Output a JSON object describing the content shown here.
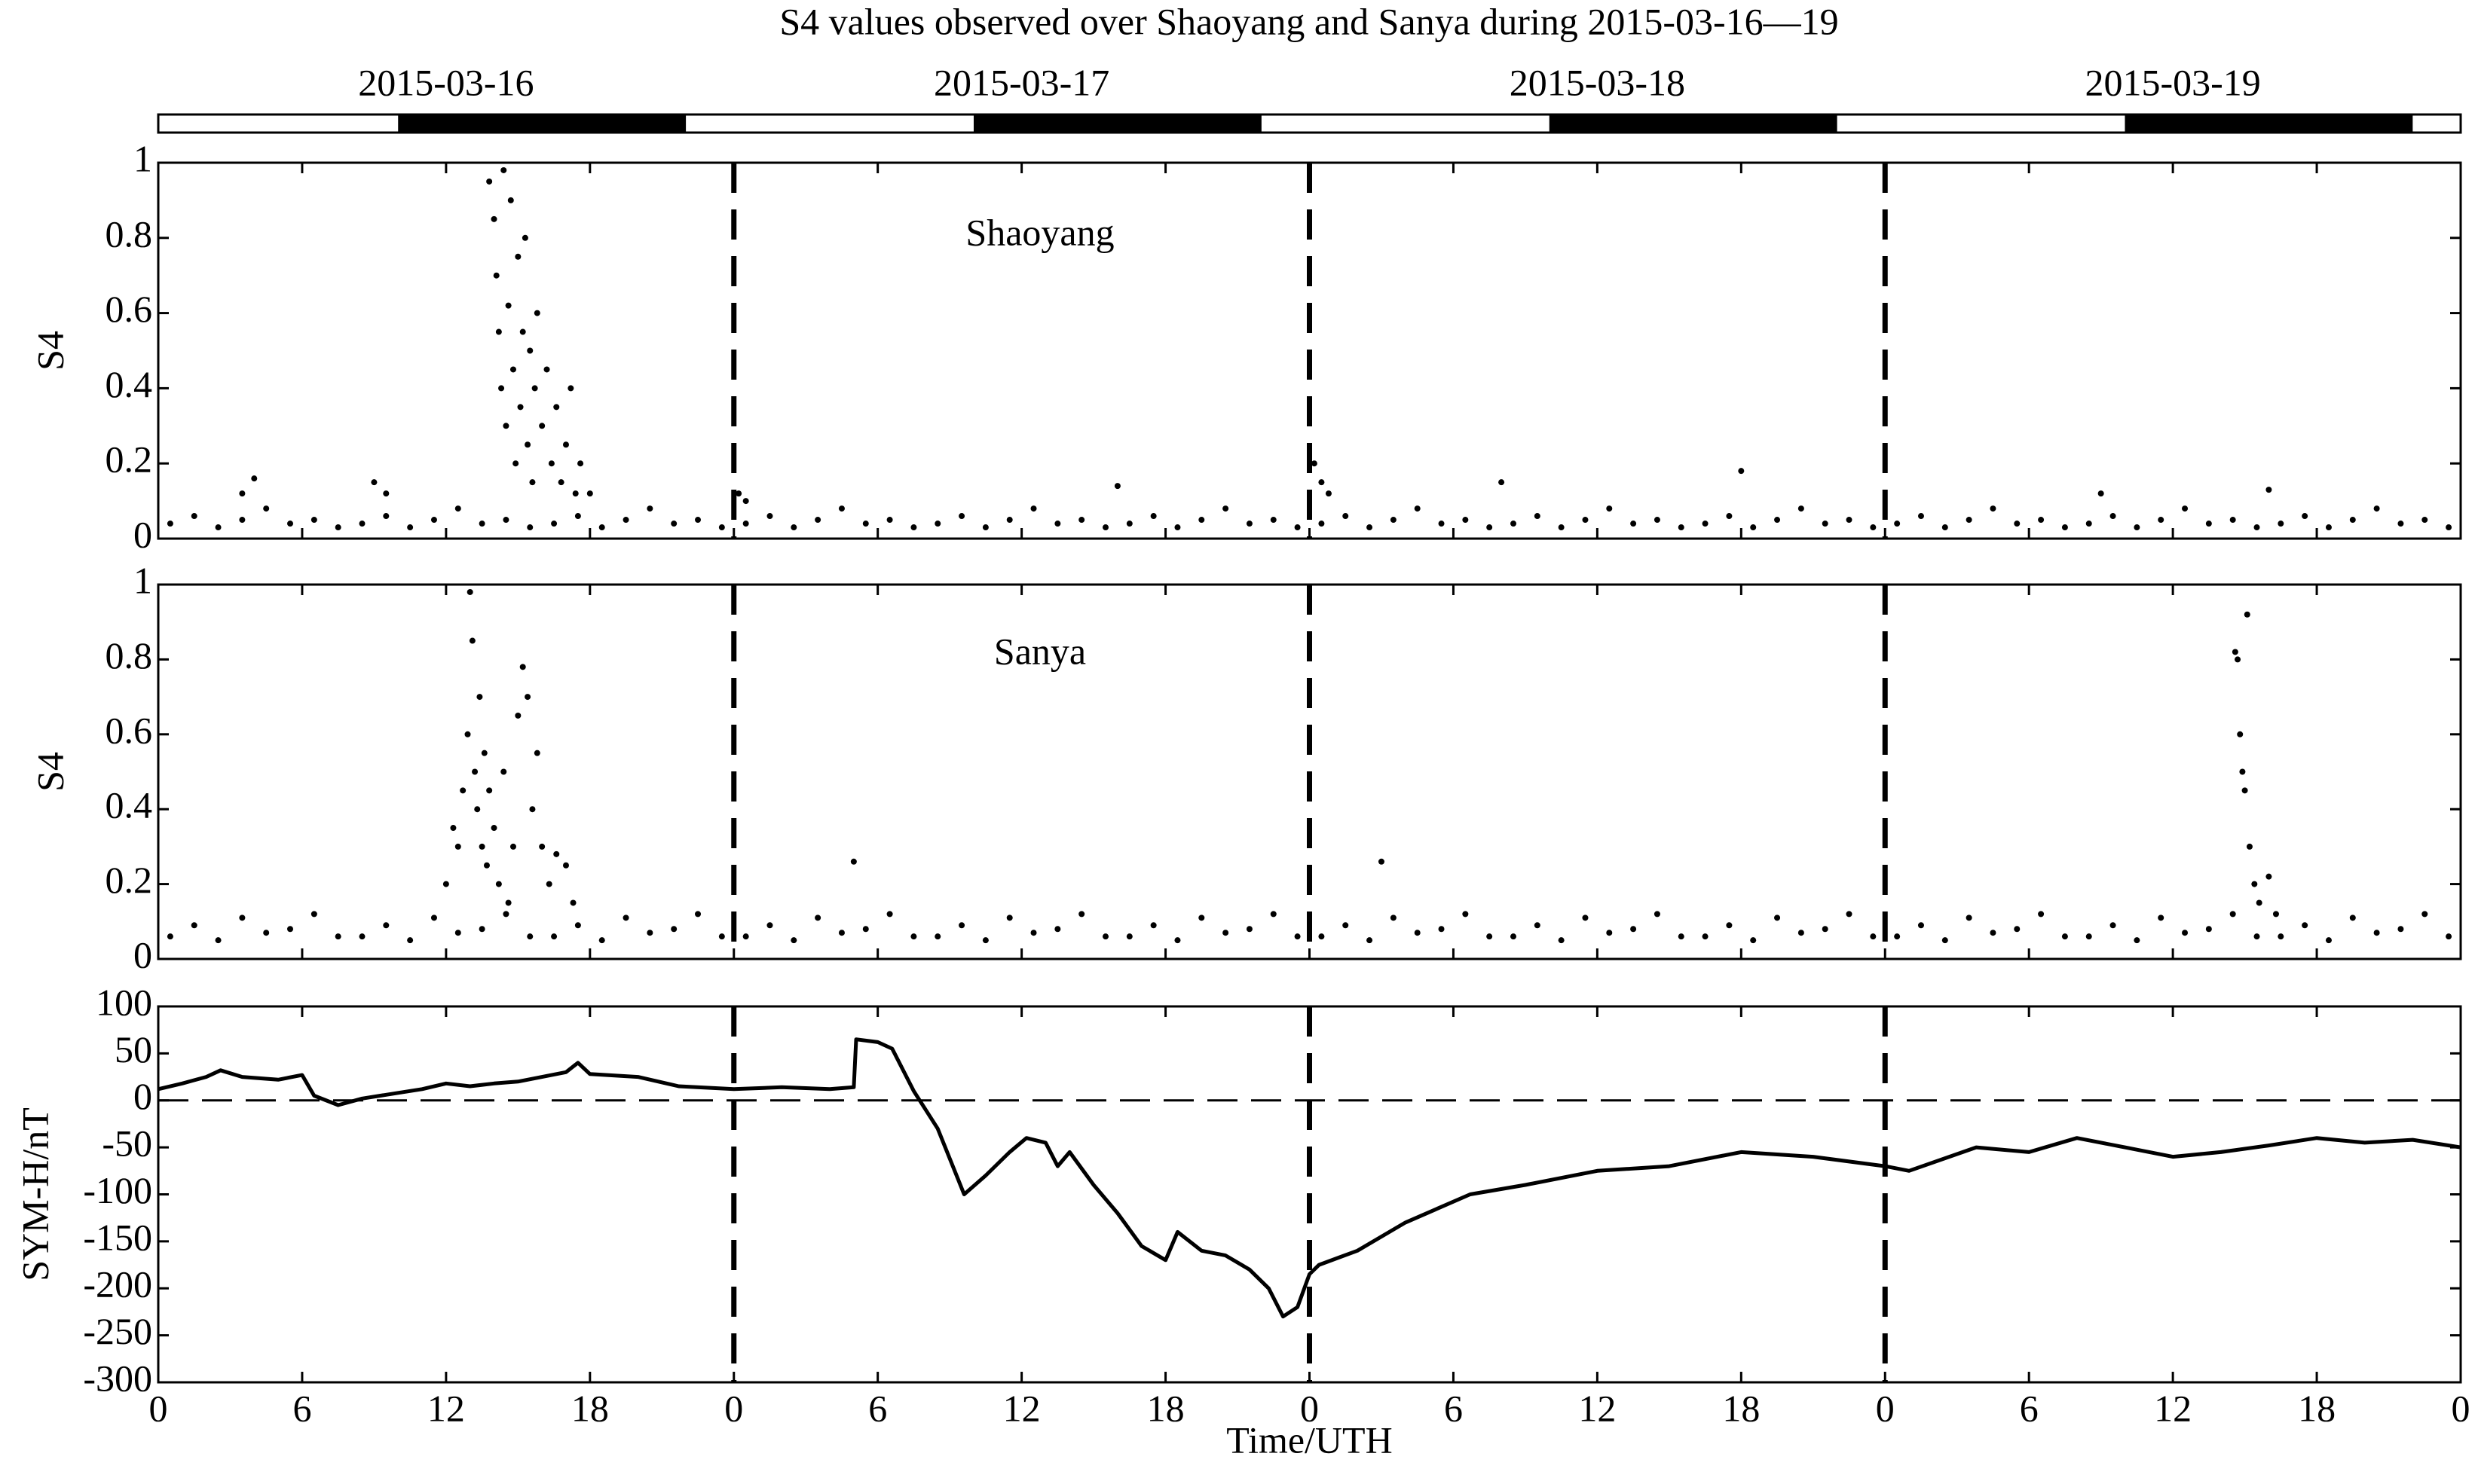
{
  "title": "S4 values observed over Shaoyang and Sanya during 2015-03-16—19",
  "dates": [
    "2015-03-16",
    "2015-03-17",
    "2015-03-18",
    "2015-03-19"
  ],
  "night": [
    [
      10,
      22
    ],
    [
      34,
      46
    ],
    [
      58,
      70
    ],
    [
      82,
      94
    ]
  ],
  "day_boundaries": [
    24,
    48,
    72
  ],
  "chart_data": [
    {
      "type": "scatter",
      "label": "Shaoyang",
      "ylabel": "S4",
      "color": "#000000",
      "xlim": [
        0,
        96
      ],
      "ylim": [
        0,
        1
      ],
      "yticks": [
        0,
        0.2,
        0.4,
        0.6,
        0.8,
        1
      ],
      "x": [
        0.5,
        1.5,
        2.5,
        3.5,
        4.5,
        5.5,
        6.5,
        7.5,
        8.5,
        9.5,
        10.5,
        11.5,
        12.5,
        13.5,
        14.5,
        15.5,
        16.5,
        17.5,
        18.5,
        19.5,
        20.5,
        21.5,
        22.5,
        23.5,
        24.5,
        25.5,
        26.5,
        27.5,
        28.5,
        29.5,
        30.5,
        31.5,
        32.5,
        33.5,
        34.5,
        35.5,
        36.5,
        37.5,
        38.5,
        39.5,
        40.5,
        41.5,
        42.5,
        43.5,
        44.5,
        45.5,
        46.5,
        47.5,
        48.5,
        49.5,
        50.5,
        51.5,
        52.5,
        53.5,
        54.5,
        55.5,
        56.5,
        57.5,
        58.5,
        59.5,
        60.5,
        61.5,
        62.5,
        63.5,
        64.5,
        65.5,
        66.5,
        67.5,
        68.5,
        69.5,
        70.5,
        71.5,
        72.5,
        73.5,
        74.5,
        75.5,
        76.5,
        77.5,
        78.5,
        79.5,
        80.5,
        81.5,
        82.5,
        83.5,
        84.5,
        85.5,
        86.5,
        87.5,
        88.5,
        89.5,
        90.5,
        91.5,
        92.5,
        93.5,
        94.5,
        95.5,
        3.5,
        4,
        9,
        9.5,
        13.8,
        14,
        14.1,
        14.2,
        14.3,
        14.4,
        14.5,
        14.6,
        14.7,
        14.8,
        14.9,
        15,
        15.1,
        15.2,
        15.3,
        15.4,
        15.5,
        15.6,
        15.7,
        15.8,
        16,
        16.2,
        16.4,
        16.6,
        16.8,
        17,
        17.2,
        17.4,
        17.6,
        18,
        24.2,
        24.5,
        48.2,
        48.5,
        48.8,
        40,
        56,
        66,
        81,
        88
      ],
      "values": [
        0.04,
        0.06,
        0.03,
        0.05,
        0.08,
        0.04,
        0.05,
        0.03,
        0.04,
        0.06,
        0.03,
        0.05,
        0.08,
        0.04,
        0.05,
        0.03,
        0.04,
        0.06,
        0.03,
        0.05,
        0.08,
        0.04,
        0.05,
        0.03,
        0.04,
        0.06,
        0.03,
        0.05,
        0.08,
        0.04,
        0.05,
        0.03,
        0.04,
        0.06,
        0.03,
        0.05,
        0.08,
        0.04,
        0.05,
        0.03,
        0.04,
        0.06,
        0.03,
        0.05,
        0.08,
        0.04,
        0.05,
        0.03,
        0.04,
        0.06,
        0.03,
        0.05,
        0.08,
        0.04,
        0.05,
        0.03,
        0.04,
        0.06,
        0.03,
        0.05,
        0.08,
        0.04,
        0.05,
        0.03,
        0.04,
        0.06,
        0.03,
        0.05,
        0.08,
        0.04,
        0.05,
        0.03,
        0.04,
        0.06,
        0.03,
        0.05,
        0.08,
        0.04,
        0.05,
        0.03,
        0.04,
        0.06,
        0.03,
        0.05,
        0.08,
        0.04,
        0.05,
        0.03,
        0.04,
        0.06,
        0.03,
        0.05,
        0.08,
        0.04,
        0.05,
        0.03,
        0.12,
        0.16,
        0.15,
        0.12,
        0.95,
        0.85,
        0.7,
        0.55,
        0.4,
        0.98,
        0.3,
        0.62,
        0.9,
        0.45,
        0.2,
        0.75,
        0.35,
        0.55,
        0.8,
        0.25,
        0.5,
        0.15,
        0.4,
        0.6,
        0.3,
        0.45,
        0.2,
        0.35,
        0.15,
        0.25,
        0.4,
        0.12,
        0.2,
        0.12,
        0.12,
        0.1,
        0.2,
        0.15,
        0.12,
        0.14,
        0.15,
        0.18,
        0.12,
        0.13
      ]
    },
    {
      "type": "scatter",
      "label": "Sanya",
      "ylabel": "S4",
      "color": "#000000",
      "xlim": [
        0,
        96
      ],
      "ylim": [
        0,
        1
      ],
      "yticks": [
        0,
        0.2,
        0.4,
        0.6,
        0.8,
        1
      ],
      "x": [
        0.5,
        1.5,
        2.5,
        3.5,
        4.5,
        5.5,
        6.5,
        7.5,
        8.5,
        9.5,
        10.5,
        11.5,
        12.5,
        13.5,
        14.5,
        15.5,
        16.5,
        17.5,
        18.5,
        19.5,
        20.5,
        21.5,
        22.5,
        23.5,
        24.5,
        25.5,
        26.5,
        27.5,
        28.5,
        29.5,
        30.5,
        31.5,
        32.5,
        33.5,
        34.5,
        35.5,
        36.5,
        37.5,
        38.5,
        39.5,
        40.5,
        41.5,
        42.5,
        43.5,
        44.5,
        45.5,
        46.5,
        47.5,
        48.5,
        49.5,
        50.5,
        51.5,
        52.5,
        53.5,
        54.5,
        55.5,
        56.5,
        57.5,
        58.5,
        59.5,
        60.5,
        61.5,
        62.5,
        63.5,
        64.5,
        65.5,
        66.5,
        67.5,
        68.5,
        69.5,
        70.5,
        71.5,
        72.5,
        73.5,
        74.5,
        75.5,
        76.5,
        77.5,
        78.5,
        79.5,
        80.5,
        81.5,
        82.5,
        83.5,
        84.5,
        85.5,
        86.5,
        87.5,
        88.5,
        89.5,
        90.5,
        91.5,
        92.5,
        93.5,
        94.5,
        95.5,
        12,
        12.3,
        12.5,
        12.7,
        12.9,
        13,
        13.1,
        13.2,
        13.3,
        13.4,
        13.5,
        13.6,
        13.7,
        13.8,
        14,
        14.2,
        14.4,
        14.6,
        14.8,
        15,
        15.2,
        15.4,
        15.6,
        15.8,
        16,
        16.3,
        16.6,
        17,
        17.3,
        29,
        51,
        86.6,
        86.7,
        86.8,
        86.9,
        87,
        87.1,
        87.2,
        87.4,
        87.6,
        88,
        88.3
      ],
      "values": [
        0.06,
        0.09,
        0.05,
        0.11,
        0.07,
        0.08,
        0.12,
        0.06,
        0.06,
        0.09,
        0.05,
        0.11,
        0.07,
        0.08,
        0.12,
        0.06,
        0.06,
        0.09,
        0.05,
        0.11,
        0.07,
        0.08,
        0.12,
        0.06,
        0.06,
        0.09,
        0.05,
        0.11,
        0.07,
        0.08,
        0.12,
        0.06,
        0.06,
        0.09,
        0.05,
        0.11,
        0.07,
        0.08,
        0.12,
        0.06,
        0.06,
        0.09,
        0.05,
        0.11,
        0.07,
        0.08,
        0.12,
        0.06,
        0.06,
        0.09,
        0.05,
        0.11,
        0.07,
        0.08,
        0.12,
        0.06,
        0.06,
        0.09,
        0.05,
        0.11,
        0.07,
        0.08,
        0.12,
        0.06,
        0.06,
        0.09,
        0.05,
        0.11,
        0.07,
        0.08,
        0.12,
        0.06,
        0.06,
        0.09,
        0.05,
        0.11,
        0.07,
        0.08,
        0.12,
        0.06,
        0.06,
        0.09,
        0.05,
        0.11,
        0.07,
        0.08,
        0.12,
        0.06,
        0.06,
        0.09,
        0.05,
        0.11,
        0.07,
        0.08,
        0.12,
        0.06,
        0.2,
        0.35,
        0.3,
        0.45,
        0.6,
        0.98,
        0.85,
        0.5,
        0.4,
        0.7,
        0.3,
        0.55,
        0.25,
        0.45,
        0.35,
        0.2,
        0.5,
        0.15,
        0.3,
        0.65,
        0.78,
        0.7,
        0.4,
        0.55,
        0.3,
        0.2,
        0.28,
        0.25,
        0.15,
        0.26,
        0.26,
        0.82,
        0.8,
        0.6,
        0.5,
        0.45,
        0.92,
        0.3,
        0.2,
        0.15,
        0.22,
        0.12
      ]
    },
    {
      "type": "line",
      "ylabel": "SYM-H/nT",
      "xlabel": "Time/UTH",
      "color": "#000000",
      "reference_line": 0,
      "xlim": [
        0,
        96
      ],
      "xticks": [
        0,
        6,
        12,
        18,
        {
          "value": 24,
          "label": "0"
        },
        {
          "value": 30,
          "label": "6"
        },
        {
          "value": 36,
          "label": "12"
        },
        {
          "value": 42,
          "label": "18"
        },
        {
          "value": 48,
          "label": "0"
        },
        {
          "value": 54,
          "label": "6"
        },
        {
          "value": 60,
          "label": "12"
        },
        {
          "value": 66,
          "label": "18"
        },
        {
          "value": 72,
          "label": "0"
        },
        {
          "value": 78,
          "label": "6"
        },
        {
          "value": 84,
          "label": "12"
        },
        {
          "value": 90,
          "label": "18"
        },
        {
          "value": 96,
          "label": "0"
        }
      ],
      "ylim": [
        -300,
        100
      ],
      "yticks": [
        -300,
        -250,
        -200,
        -150,
        -100,
        -50,
        0,
        50,
        100
      ],
      "x": [
        0,
        1,
        2,
        2.6,
        3.5,
        5,
        6,
        6.5,
        7.5,
        8.5,
        10,
        11,
        12,
        13,
        14,
        15,
        16,
        17,
        17.5,
        18,
        20,
        21.7,
        24,
        26,
        28,
        29,
        29.1,
        30,
        30.6,
        31.5,
        32.5,
        33.6,
        34.5,
        35.5,
        36.2,
        37,
        37.5,
        38,
        39,
        40,
        41,
        42,
        42.5,
        43.5,
        44.5,
        45.5,
        46.3,
        46.9,
        47.5,
        48,
        48.4,
        50,
        52,
        54.7,
        57,
        60,
        63,
        66,
        69,
        72,
        73,
        75.8,
        78,
        80,
        82,
        84,
        86,
        88,
        90,
        92,
        94,
        96
      ],
      "values": [
        12,
        18,
        25,
        32,
        25,
        22,
        27,
        5,
        -5,
        2,
        8,
        12,
        18,
        15,
        18,
        20,
        25,
        30,
        40,
        28,
        25,
        15,
        12,
        14,
        12,
        14,
        65,
        62,
        55,
        10,
        -30,
        -100,
        -80,
        -55,
        -40,
        -45,
        -70,
        -55,
        -90,
        -120,
        -155,
        -170,
        -140,
        -160,
        -165,
        -180,
        -200,
        -230,
        -220,
        -185,
        -175,
        -160,
        -130,
        -100,
        -90,
        -75,
        -70,
        -55,
        -60,
        -70,
        -75,
        -50,
        -55,
        -40,
        -50,
        -60,
        -55,
        -48,
        -40,
        -45,
        -42,
        -50
      ]
    }
  ]
}
